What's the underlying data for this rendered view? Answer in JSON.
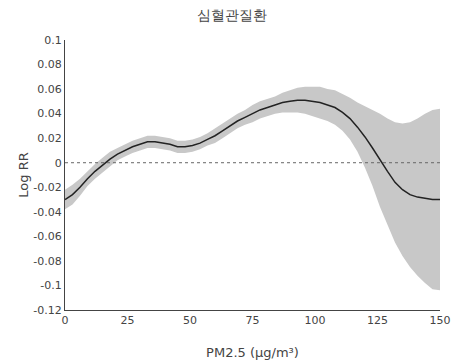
{
  "chart_data": {
    "type": "line",
    "title": "심혈관질환",
    "x_label": "PM2.5 (μg/m³)",
    "y_label": "Log RR",
    "x": [
      0,
      3,
      6,
      9,
      12,
      15,
      18,
      21,
      24,
      27,
      30,
      33,
      36,
      39,
      42,
      45,
      48,
      51,
      54,
      57,
      60,
      63,
      66,
      69,
      72,
      75,
      78,
      81,
      84,
      87,
      90,
      93,
      96,
      99,
      102,
      105,
      108,
      111,
      114,
      117,
      120,
      123,
      126,
      129,
      132,
      135,
      138,
      141,
      144,
      147,
      150
    ],
    "series": [
      {
        "type": "band",
        "color": "#c8c8c8",
        "upper": [
          -0.022,
          -0.018,
          -0.013,
          -0.007,
          -0.001,
          0.004,
          0.009,
          0.012,
          0.015,
          0.018,
          0.02,
          0.022,
          0.022,
          0.021,
          0.02,
          0.018,
          0.018,
          0.019,
          0.021,
          0.024,
          0.028,
          0.032,
          0.036,
          0.04,
          0.043,
          0.047,
          0.05,
          0.052,
          0.054,
          0.057,
          0.059,
          0.061,
          0.062,
          0.062,
          0.062,
          0.06,
          0.059,
          0.056,
          0.053,
          0.049,
          0.046,
          0.043,
          0.04,
          0.036,
          0.033,
          0.032,
          0.033,
          0.036,
          0.04,
          0.043,
          0.044
        ],
        "lower": [
          -0.038,
          -0.034,
          -0.027,
          -0.019,
          -0.013,
          -0.008,
          -0.003,
          0.002,
          0.005,
          0.008,
          0.01,
          0.012,
          0.012,
          0.011,
          0.01,
          0.008,
          0.008,
          0.009,
          0.011,
          0.014,
          0.016,
          0.02,
          0.024,
          0.028,
          0.031,
          0.033,
          0.036,
          0.038,
          0.04,
          0.041,
          0.041,
          0.041,
          0.04,
          0.038,
          0.036,
          0.034,
          0.031,
          0.026,
          0.019,
          0.009,
          -0.004,
          -0.019,
          -0.036,
          -0.05,
          -0.065,
          -0.076,
          -0.085,
          -0.092,
          -0.098,
          -0.103,
          -0.104
        ]
      },
      {
        "type": "line",
        "color": "#222222",
        "values": [
          -0.03,
          -0.026,
          -0.02,
          -0.013,
          -0.007,
          -0.002,
          0.003,
          0.007,
          0.01,
          0.013,
          0.015,
          0.017,
          0.017,
          0.016,
          0.015,
          0.013,
          0.013,
          0.014,
          0.016,
          0.019,
          0.022,
          0.026,
          0.03,
          0.034,
          0.037,
          0.04,
          0.043,
          0.045,
          0.047,
          0.049,
          0.05,
          0.051,
          0.051,
          0.05,
          0.049,
          0.047,
          0.045,
          0.041,
          0.036,
          0.029,
          0.021,
          0.012,
          0.002,
          -0.007,
          -0.016,
          -0.022,
          -0.026,
          -0.028,
          -0.029,
          -0.03,
          -0.03
        ]
      }
    ],
    "hline": {
      "value": 0,
      "color": "#666666",
      "line_style": "dotted"
    },
    "xlim": [
      0,
      150
    ],
    "ylim": [
      -0.12,
      0.1
    ],
    "xticks": [
      0,
      25,
      50,
      75,
      100,
      125,
      150
    ],
    "yticks": [
      -0.12,
      -0.1,
      -0.08,
      -0.06,
      -0.04,
      -0.02,
      0,
      0.02,
      0.04,
      0.06,
      0.08,
      0.1
    ],
    "grid": false
  }
}
